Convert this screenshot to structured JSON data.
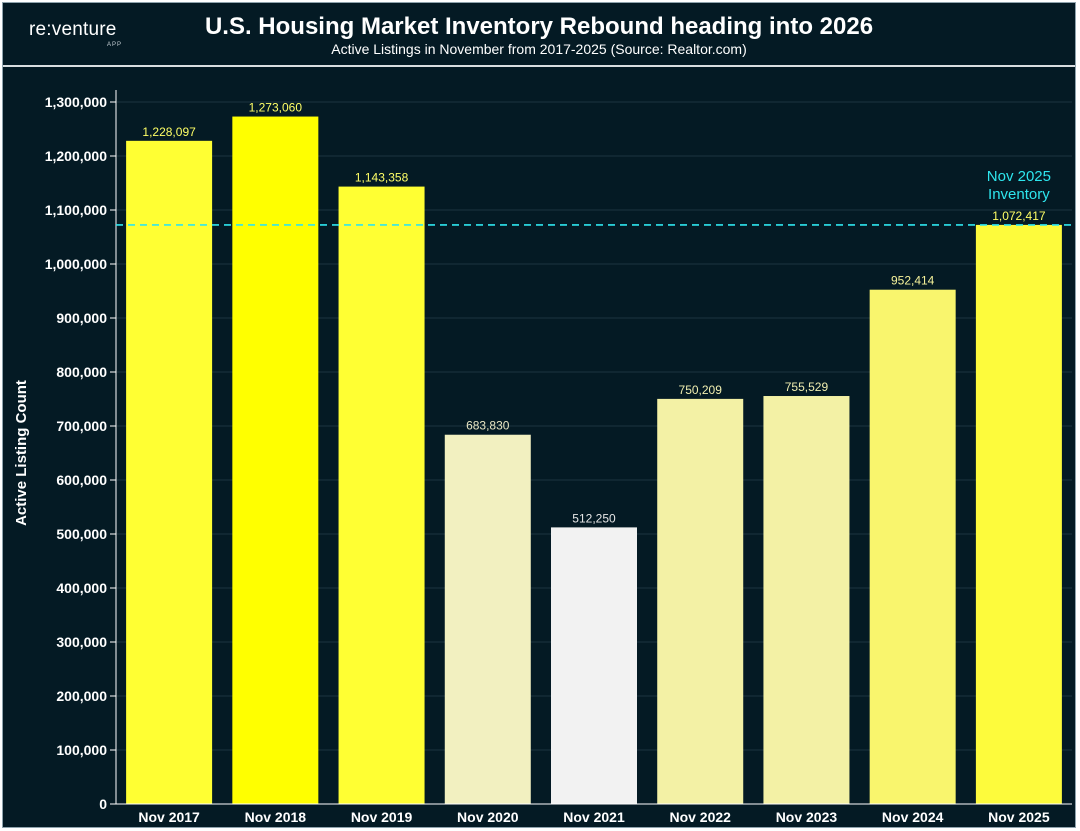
{
  "header": {
    "logo": "re:venture",
    "logo_sub": "APP",
    "title": "U.S. Housing Market Inventory Rebound heading into 2026",
    "subtitle": "Active Listings in November from 2017-2025 (Source: Realtor.com)"
  },
  "chart_data": {
    "type": "bar",
    "title": "U.S. Housing Market Inventory Rebound heading into 2026",
    "subtitle": "Active Listings in November from 2017-2025 (Source: Realtor.com)",
    "xlabel": "",
    "ylabel": "Active Listing Count",
    "ylim": [
      0,
      1300000
    ],
    "yticks": [
      0,
      100000,
      200000,
      300000,
      400000,
      500000,
      600000,
      700000,
      800000,
      900000,
      1000000,
      1100000,
      1200000,
      1300000
    ],
    "ytick_labels": [
      "0",
      "100,000",
      "200,000",
      "300,000",
      "400,000",
      "500,000",
      "600,000",
      "700,000",
      "800,000",
      "900,000",
      "1,000,000",
      "1,100,000",
      "1,200,000",
      "1,300,000"
    ],
    "grid": true,
    "categories": [
      "Nov 2017",
      "Nov 2018",
      "Nov 2019",
      "Nov 2020",
      "Nov 2021",
      "Nov 2022",
      "Nov 2023",
      "Nov 2024",
      "Nov 2025"
    ],
    "values": [
      1228097,
      1273060,
      1143358,
      683830,
      512250,
      750209,
      755529,
      952414,
      1072417
    ],
    "value_labels": [
      "1,228,097",
      "1,273,060",
      "1,143,358",
      "683,830",
      "512,250",
      "750,209",
      "755,529",
      "952,414",
      "1,072,417"
    ],
    "bar_colors": [
      "#ffff33",
      "#ffff00",
      "#ffff33",
      "#f2f0c0",
      "#f2f2f2",
      "#f3f1a5",
      "#f3f1a5",
      "#f9f56d",
      "#fdfb3c"
    ],
    "value_label_colors": [
      "#ffff66",
      "#ffff66",
      "#ffff66",
      "#e8e6c4",
      "#e6e6e6",
      "#f0eeb0",
      "#f0eeb0",
      "#f6f29a",
      "#ffff66"
    ],
    "reference_line": {
      "value": 1072417,
      "label_lines": [
        "Nov 2025",
        "Inventory"
      ],
      "color": "#2ee6ee"
    }
  },
  "colors": {
    "background": "#041a24",
    "grid": "#1c3440",
    "axis": "#ffffff"
  }
}
